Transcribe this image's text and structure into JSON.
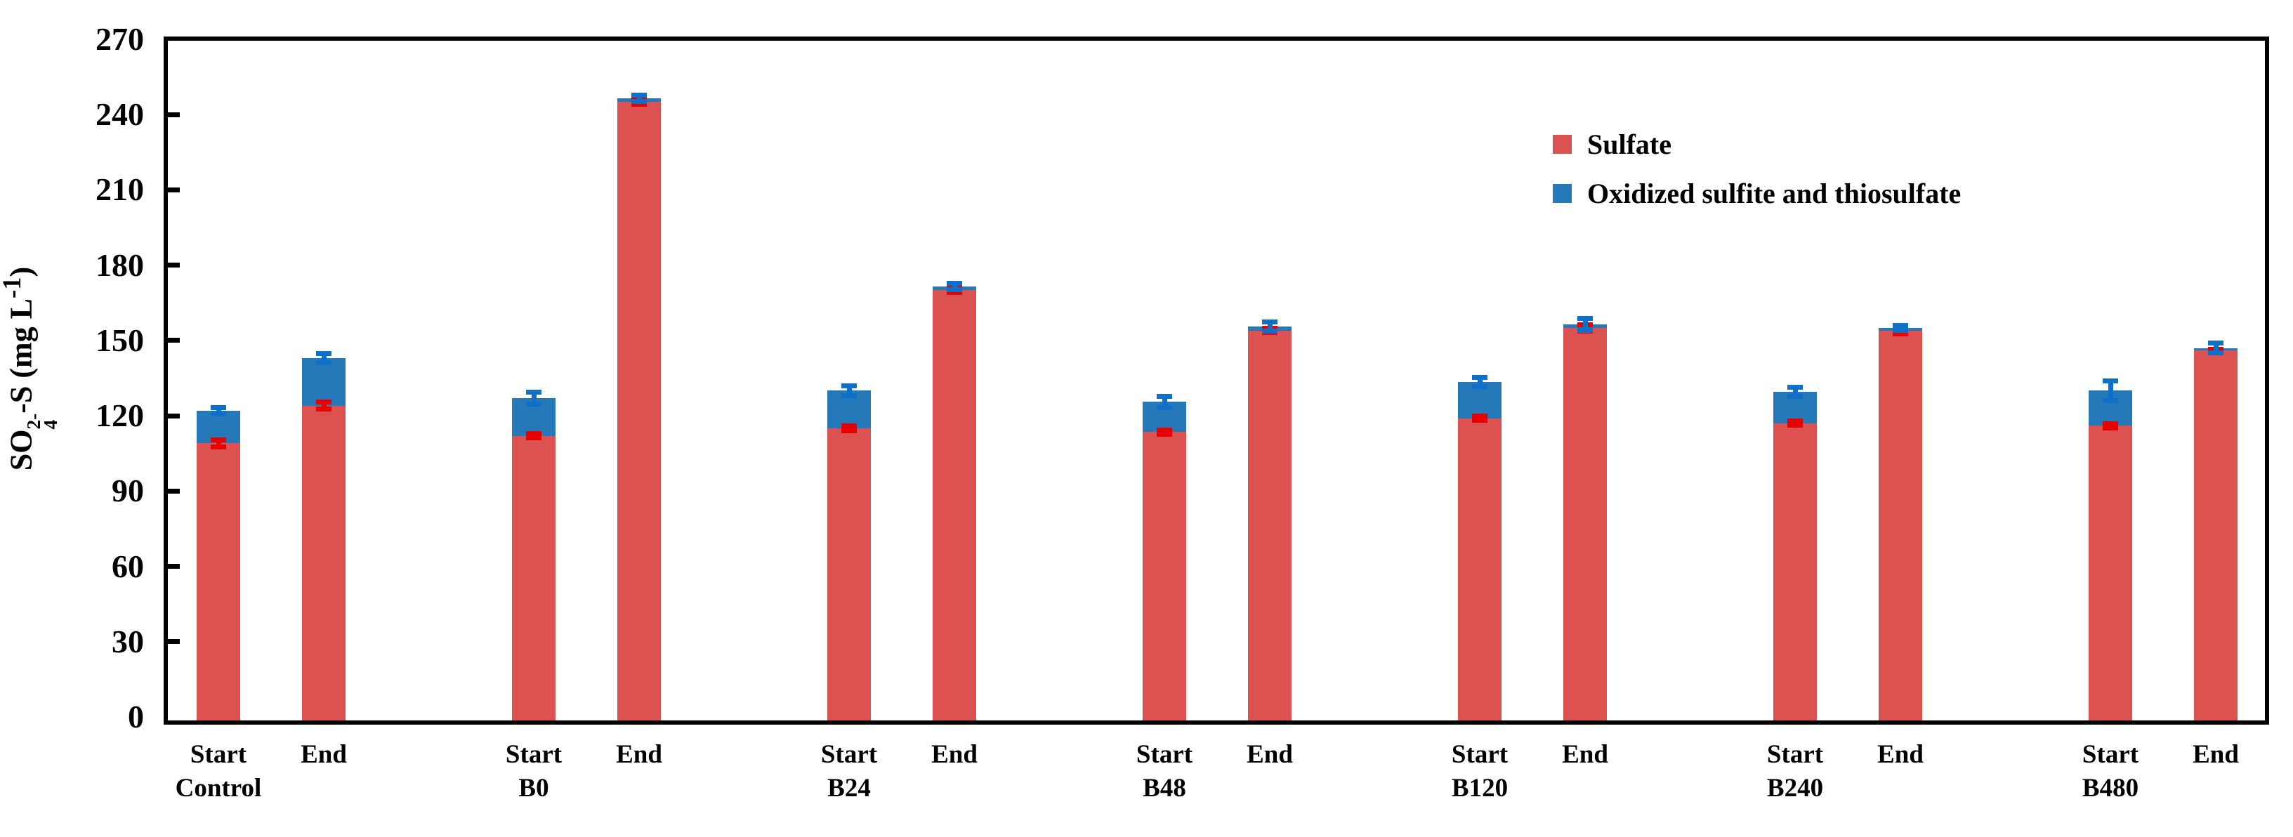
{
  "chart_data": {
    "type": "bar",
    "subtype": "stacked-with-error-bars",
    "title": "",
    "ylabel_text": "SO42--S (mg L-1)",
    "ylabel_parts": {
      "prefix": "SO",
      "sub1": "4",
      "sup1": "2-",
      "middle": "-S (mg L",
      "sup2": "-1",
      "suffix": ")"
    },
    "ylim": [
      0,
      270
    ],
    "ytick_step": 30,
    "ytick_labels": [
      "0",
      "30",
      "60",
      "90",
      "120",
      "150",
      "180",
      "210",
      "240",
      "270"
    ],
    "grid": "off",
    "legend_position": "upper-right-inside",
    "legend": [
      {
        "label": "Sulfate",
        "color_key": "sulfate"
      },
      {
        "label": "Oxidized sulfite and thiosulfate",
        "color_key": "oxidized"
      }
    ],
    "bar_labels": [
      "Start",
      "End"
    ],
    "categories": [
      "Control",
      "B0",
      "B24",
      "B48",
      "B120",
      "B240",
      "B480"
    ],
    "colors": {
      "sulfate": "#DB5250",
      "oxidized": "#2679B8",
      "sulfate_err": "#E60000",
      "oxidized_err": "#1070C8",
      "axis": "#000000"
    },
    "groups": [
      {
        "category": "Control",
        "bars": [
          {
            "label": "Start",
            "sulfate": 109.0,
            "oxidized": 13.0,
            "sulfate_err": 1.5,
            "oxidized_err": 1.5
          },
          {
            "label": "End",
            "sulfate": 124.0,
            "oxidized": 19.0,
            "sulfate_err": 1.5,
            "oxidized_err": 2.0
          }
        ]
      },
      {
        "category": "B0",
        "bars": [
          {
            "label": "Start",
            "sulfate": 112.0,
            "oxidized": 15.0,
            "sulfate_err": 1.0,
            "oxidized_err": 2.5
          },
          {
            "label": "End",
            "sulfate": 245.0,
            "oxidized": 1.5,
            "sulfate_err": 1.0,
            "oxidized_err": 1.5
          }
        ]
      },
      {
        "category": "B24",
        "bars": [
          {
            "label": "Start",
            "sulfate": 115.0,
            "oxidized": 15.0,
            "sulfate_err": 1.0,
            "oxidized_err": 2.0
          },
          {
            "label": "End",
            "sulfate": 170.0,
            "oxidized": 1.5,
            "sulfate_err": 1.0,
            "oxidized_err": 1.5
          }
        ]
      },
      {
        "category": "B48",
        "bars": [
          {
            "label": "Start",
            "sulfate": 113.5,
            "oxidized": 12.0,
            "sulfate_err": 1.0,
            "oxidized_err": 2.5
          },
          {
            "label": "End",
            "sulfate": 154.0,
            "oxidized": 1.5,
            "sulfate_err": 1.0,
            "oxidized_err": 2.0
          }
        ]
      },
      {
        "category": "B120",
        "bars": [
          {
            "label": "Start",
            "sulfate": 119.0,
            "oxidized": 14.5,
            "sulfate_err": 1.0,
            "oxidized_err": 2.0
          },
          {
            "label": "End",
            "sulfate": 155.0,
            "oxidized": 1.5,
            "sulfate_err": 1.5,
            "oxidized_err": 2.5
          }
        ]
      },
      {
        "category": "B240",
        "bars": [
          {
            "label": "Start",
            "sulfate": 117.0,
            "oxidized": 12.5,
            "sulfate_err": 1.0,
            "oxidized_err": 2.0
          },
          {
            "label": "End",
            "sulfate": 154.0,
            "oxidized": 1.0,
            "sulfate_err": 1.5,
            "oxidized_err": 1.0
          }
        ]
      },
      {
        "category": "B480",
        "bars": [
          {
            "label": "Start",
            "sulfate": 116.0,
            "oxidized": 14.0,
            "sulfate_err": 1.0,
            "oxidized_err": 4.0
          },
          {
            "label": "End",
            "sulfate": 146.0,
            "oxidized": 1.0,
            "sulfate_err": 0.5,
            "oxidized_err": 2.0
          }
        ]
      }
    ]
  }
}
